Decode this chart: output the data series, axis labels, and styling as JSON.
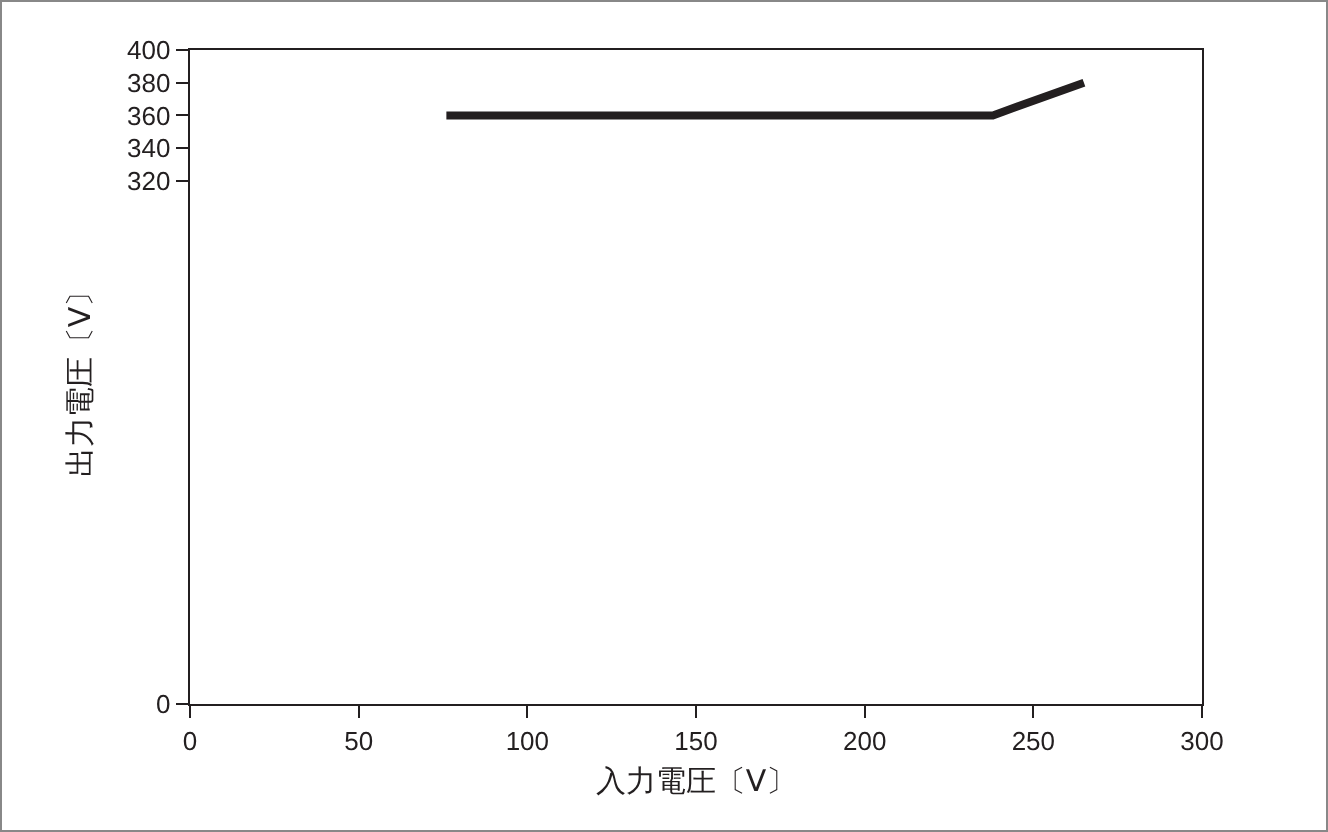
{
  "chart_data": {
    "type": "line",
    "xlabel": "入力電圧〔V〕",
    "ylabel": "出力電圧〔V〕",
    "x": [
      76,
      238,
      265
    ],
    "series": [
      {
        "color": "#231f20",
        "values": [
          360,
          360,
          380
        ]
      }
    ],
    "xlim": [
      0,
      300
    ],
    "xticks": [
      0,
      50,
      100,
      150,
      200,
      250,
      300
    ],
    "ylim": [
      0,
      400
    ],
    "yticks": [
      0,
      320,
      340,
      360,
      380,
      400
    ],
    "marker": "none",
    "line_style": "solid"
  }
}
